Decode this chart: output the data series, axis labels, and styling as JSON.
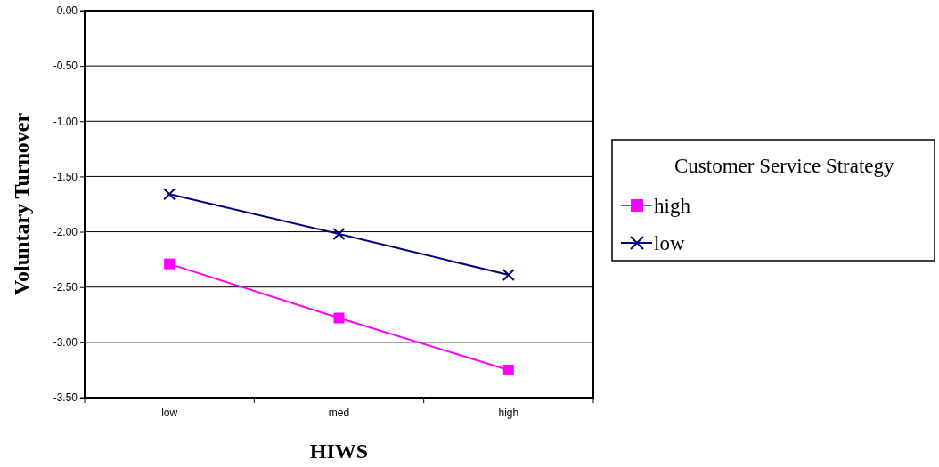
{
  "chart_data": {
    "type": "line",
    "xlabel": "HIWS",
    "ylabel": "Voluntary Turnover",
    "legend_title": "Customer Service Strategy",
    "categories": [
      "low",
      "med",
      "high"
    ],
    "series": [
      {
        "name": "high",
        "color": "#ff00ff",
        "marker": "square",
        "values": [
          -2.29,
          -2.78,
          -3.25
        ]
      },
      {
        "name": "low",
        "color": "#000080",
        "marker": "cross",
        "values": [
          -1.66,
          -2.02,
          -2.39
        ]
      }
    ],
    "ylim": [
      -3.5,
      0
    ],
    "yticks": [
      {
        "value": 0,
        "label": "0.00"
      },
      {
        "value": -0.5,
        "label": "-0.50"
      },
      {
        "value": -1,
        "label": "-1.00"
      },
      {
        "value": -1.5,
        "label": "-1.50"
      },
      {
        "value": -2,
        "label": "-2.00"
      },
      {
        "value": -2.5,
        "label": "-2.50"
      },
      {
        "value": -3,
        "label": "-3.00"
      },
      {
        "value": -3.5,
        "label": "-3.50"
      }
    ],
    "grid": "y",
    "legend": "right"
  }
}
